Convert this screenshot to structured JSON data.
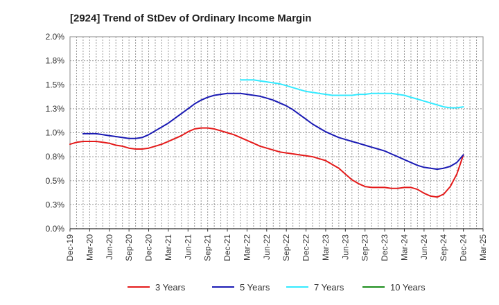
{
  "chart_data": {
    "type": "line",
    "title": "[2924]  Trend of StDev of Ordinary Income Margin",
    "xlabel": "",
    "ylabel": "",
    "x_labels": [
      "Dec-19",
      "Mar-20",
      "Jun-20",
      "Sep-20",
      "Dec-20",
      "Mar-21",
      "Jun-21",
      "Sep-21",
      "Dec-21",
      "Mar-22",
      "Jun-22",
      "Sep-22",
      "Dec-22",
      "Mar-23",
      "Jun-23",
      "Sep-23",
      "Dec-23",
      "Mar-24",
      "Jun-24",
      "Sep-24",
      "Dec-24",
      "Mar-25"
    ],
    "y_ticks": [
      "0.0%",
      "0.3%",
      "0.5%",
      "0.8%",
      "1.0%",
      "1.3%",
      "1.5%",
      "1.8%",
      "2.0%"
    ],
    "ylim": [
      0,
      2.0
    ],
    "grid": true,
    "legend_position": "bottom",
    "series": [
      {
        "name": "3 Years",
        "color": "#e41a1a",
        "x": [
          "Dec-19",
          "Jan-20",
          "Feb-20",
          "Mar-20",
          "Apr-20",
          "May-20",
          "Jun-20",
          "Jul-20",
          "Aug-20",
          "Sep-20",
          "Oct-20",
          "Nov-20",
          "Dec-20",
          "Jan-21",
          "Feb-21",
          "Mar-21",
          "Apr-21",
          "May-21",
          "Jun-21",
          "Jul-21",
          "Aug-21",
          "Sep-21",
          "Oct-21",
          "Nov-21",
          "Dec-21",
          "Jan-22",
          "Feb-22",
          "Mar-22",
          "Apr-22",
          "May-22",
          "Jun-22",
          "Jul-22",
          "Aug-22",
          "Sep-22",
          "Oct-22",
          "Nov-22",
          "Dec-22",
          "Jan-23",
          "Feb-23",
          "Mar-23",
          "Apr-23",
          "May-23",
          "Jun-23",
          "Jul-23",
          "Aug-23",
          "Sep-23",
          "Oct-23",
          "Nov-23",
          "Dec-23",
          "Jan-24",
          "Feb-24",
          "Mar-24",
          "Apr-24",
          "May-24",
          "Jun-24",
          "Jul-24",
          "Aug-24",
          "Sep-24",
          "Oct-24",
          "Nov-24",
          "Dec-24"
        ],
        "values": [
          0.88,
          0.9,
          0.91,
          0.91,
          0.91,
          0.9,
          0.89,
          0.87,
          0.86,
          0.84,
          0.83,
          0.83,
          0.84,
          0.86,
          0.88,
          0.91,
          0.94,
          0.97,
          1.01,
          1.04,
          1.05,
          1.05,
          1.04,
          1.02,
          1.0,
          0.98,
          0.95,
          0.92,
          0.89,
          0.86,
          0.84,
          0.82,
          0.8,
          0.79,
          0.78,
          0.77,
          0.76,
          0.75,
          0.73,
          0.71,
          0.67,
          0.63,
          0.57,
          0.51,
          0.47,
          0.44,
          0.43,
          0.43,
          0.43,
          0.42,
          0.42,
          0.43,
          0.43,
          0.41,
          0.37,
          0.34,
          0.33,
          0.36,
          0.44,
          0.57,
          0.77
        ]
      },
      {
        "name": "5 Years",
        "color": "#1a1ab4",
        "x": [
          "Dec-19",
          "Jan-20",
          "Feb-20",
          "Mar-20",
          "Apr-20",
          "May-20",
          "Jun-20",
          "Jul-20",
          "Aug-20",
          "Sep-20",
          "Oct-20",
          "Nov-20",
          "Dec-20",
          "Jan-21",
          "Feb-21",
          "Mar-21",
          "Apr-21",
          "May-21",
          "Jun-21",
          "Jul-21",
          "Aug-21",
          "Sep-21",
          "Oct-21",
          "Nov-21",
          "Dec-21",
          "Jan-22",
          "Feb-22",
          "Mar-22",
          "Apr-22",
          "May-22",
          "Jun-22",
          "Jul-22",
          "Aug-22",
          "Sep-22",
          "Oct-22",
          "Nov-22",
          "Dec-22",
          "Jan-23",
          "Feb-23",
          "Mar-23",
          "Apr-23",
          "May-23",
          "Jun-23",
          "Jul-23",
          "Aug-23",
          "Sep-23",
          "Oct-23",
          "Nov-23",
          "Dec-23",
          "Jan-24",
          "Feb-24",
          "Mar-24",
          "Apr-24",
          "May-24",
          "Jun-24",
          "Jul-24",
          "Aug-24",
          "Sep-24",
          "Oct-24",
          "Nov-24",
          "Dec-24"
        ],
        "values": [
          null,
          null,
          0.99,
          0.99,
          0.99,
          0.98,
          0.97,
          0.96,
          0.95,
          0.94,
          0.94,
          0.95,
          0.98,
          1.02,
          1.06,
          1.1,
          1.15,
          1.2,
          1.25,
          1.3,
          1.34,
          1.37,
          1.39,
          1.4,
          1.41,
          1.41,
          1.41,
          1.4,
          1.39,
          1.38,
          1.36,
          1.34,
          1.31,
          1.28,
          1.24,
          1.19,
          1.14,
          1.09,
          1.05,
          1.01,
          0.98,
          0.95,
          0.93,
          0.91,
          0.89,
          0.87,
          0.85,
          0.83,
          0.81,
          0.78,
          0.75,
          0.72,
          0.69,
          0.66,
          0.64,
          0.63,
          0.62,
          0.63,
          0.65,
          0.69,
          0.77
        ]
      },
      {
        "name": "7 Years",
        "color": "#33eaff",
        "x": [
          "Feb-22",
          "Mar-22",
          "Apr-22",
          "May-22",
          "Jun-22",
          "Jul-22",
          "Aug-22",
          "Sep-22",
          "Oct-22",
          "Nov-22",
          "Dec-22",
          "Jan-23",
          "Feb-23",
          "Mar-23",
          "Apr-23",
          "May-23",
          "Jun-23",
          "Jul-23",
          "Aug-23",
          "Sep-23",
          "Oct-23",
          "Nov-23",
          "Dec-23",
          "Jan-24",
          "Feb-24",
          "Mar-24",
          "Apr-24",
          "May-24",
          "Jun-24",
          "Jul-24",
          "Aug-24",
          "Sep-24",
          "Oct-24",
          "Nov-24",
          "Dec-24"
        ],
        "values": [
          1.55,
          1.55,
          1.55,
          1.54,
          1.53,
          1.52,
          1.51,
          1.49,
          1.47,
          1.45,
          1.43,
          1.42,
          1.41,
          1.4,
          1.39,
          1.39,
          1.39,
          1.39,
          1.4,
          1.4,
          1.41,
          1.41,
          1.41,
          1.41,
          1.4,
          1.39,
          1.37,
          1.35,
          1.33,
          1.31,
          1.29,
          1.27,
          1.26,
          1.26,
          1.27
        ]
      },
      {
        "name": "10 Years",
        "color": "#1a8c1a",
        "x": [],
        "values": []
      }
    ]
  }
}
